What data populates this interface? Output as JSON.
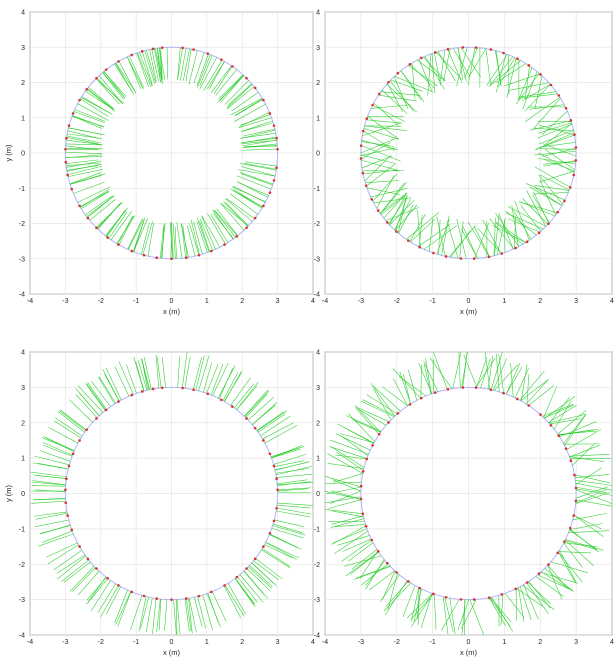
{
  "chart_data": [
    {
      "type": "scatter",
      "title": "",
      "xlabel": "x (m)",
      "ylabel": "y (m)",
      "xlim": [
        -4,
        4
      ],
      "ylim": [
        -4,
        4
      ],
      "xticks": [
        "-4",
        "-3",
        "-2",
        "-1",
        "0",
        "1",
        "2",
        "3",
        "4"
      ],
      "yticks": [
        "-4",
        "-3",
        "-2",
        "-1",
        "0",
        "1",
        "2",
        "3",
        "4"
      ],
      "grid": true,
      "circle_radius": 3,
      "ray_pattern": "inward-radial",
      "ray_length_range": [
        0.9,
        1.05
      ],
      "colors": {
        "circle": "#b3b3ff",
        "points": "#e03030",
        "rays": "#22cc22"
      },
      "ray_angles_deg": [
        2,
        8,
        15,
        22,
        30,
        38,
        45,
        55,
        62,
        70,
        78,
        84,
        95,
        100,
        106,
        112,
        120,
        128,
        135,
        143,
        150,
        158,
        165,
        172,
        178,
        185,
        192,
        200,
        210,
        218,
        225,
        233,
        240,
        248,
        255,
        262,
        270,
        278,
        285,
        292,
        300,
        308,
        315,
        322,
        330,
        338,
        345,
        352
      ]
    },
    {
      "type": "scatter",
      "title": "",
      "xlabel": "x (m)",
      "ylabel": "",
      "xlim": [
        -4,
        4
      ],
      "ylim": [
        -4,
        4
      ],
      "xticks": [
        "-4",
        "-3",
        "-2",
        "-1",
        "0",
        "1",
        "2",
        "3",
        "4"
      ],
      "yticks": [
        "-4",
        "-3",
        "-2",
        "-1",
        "0",
        "1",
        "2",
        "3",
        "4"
      ],
      "grid": true,
      "circle_radius": 3,
      "ray_pattern": "inward-scattered",
      "ray_length_range": [
        0.9,
        1.2
      ],
      "colors": {
        "circle": "#b3b3ff",
        "points": "#e03030",
        "rays": "#22cc22"
      },
      "ray_angles_deg": [
        3,
        10,
        18,
        25,
        33,
        40,
        48,
        56,
        63,
        71,
        78,
        86,
        93,
        101,
        108,
        116,
        123,
        131,
        138,
        146,
        153,
        161,
        168,
        176,
        183,
        191,
        198,
        206,
        213,
        221,
        228,
        236,
        243,
        251,
        258,
        266,
        273,
        281,
        288,
        296,
        303,
        311,
        318,
        326,
        333,
        341,
        348,
        356
      ]
    },
    {
      "type": "scatter",
      "title": "",
      "xlabel": "x (m)",
      "ylabel": "y (m)",
      "xlim": [
        -4,
        4
      ],
      "ylim": [
        -4,
        4
      ],
      "xticks": [
        "-4",
        "-3",
        "-2",
        "-1",
        "0",
        "1",
        "2",
        "3",
        "4"
      ],
      "yticks": [
        "-4",
        "-3",
        "-2",
        "-1",
        "0",
        "1",
        "2",
        "3",
        "4"
      ],
      "grid": true,
      "circle_radius": 3,
      "ray_pattern": "outward-radial",
      "ray_length_range": [
        0.85,
        1.05
      ],
      "colors": {
        "circle": "#b3b3ff",
        "points": "#e03030",
        "rays": "#22cc22"
      },
      "ray_angles_deg": [
        2,
        8,
        15,
        22,
        30,
        38,
        45,
        55,
        62,
        70,
        78,
        84,
        95,
        100,
        106,
        112,
        120,
        128,
        135,
        143,
        150,
        158,
        165,
        172,
        178,
        185,
        192,
        200,
        210,
        218,
        225,
        233,
        240,
        248,
        255,
        262,
        270,
        278,
        285,
        292,
        300,
        308,
        315,
        322,
        330,
        338,
        345,
        352
      ]
    },
    {
      "type": "scatter",
      "title": "",
      "xlabel": "x (m)",
      "ylabel": "",
      "xlim": [
        -4,
        4
      ],
      "ylim": [
        -4,
        4
      ],
      "xticks": [
        "-4",
        "-3",
        "-2",
        "-1",
        "0",
        "1",
        "2",
        "3",
        "4"
      ],
      "yticks": [
        "-4",
        "-3",
        "-2",
        "-1",
        "0",
        "1",
        "2",
        "3",
        "4"
      ],
      "grid": true,
      "circle_radius": 3,
      "ray_pattern": "outward-scattered",
      "ray_length_range": [
        0.85,
        1.15
      ],
      "colors": {
        "circle": "#b3b3ff",
        "points": "#e03030",
        "rays": "#22cc22"
      },
      "ray_angles_deg": [
        3,
        10,
        18,
        25,
        33,
        40,
        48,
        56,
        63,
        71,
        78,
        86,
        93,
        101,
        108,
        116,
        123,
        131,
        138,
        146,
        153,
        161,
        168,
        176,
        183,
        191,
        198,
        206,
        213,
        221,
        228,
        236,
        243,
        251,
        258,
        266,
        273,
        281,
        288,
        296,
        303,
        311,
        318,
        326,
        333,
        341,
        348,
        356
      ]
    }
  ]
}
